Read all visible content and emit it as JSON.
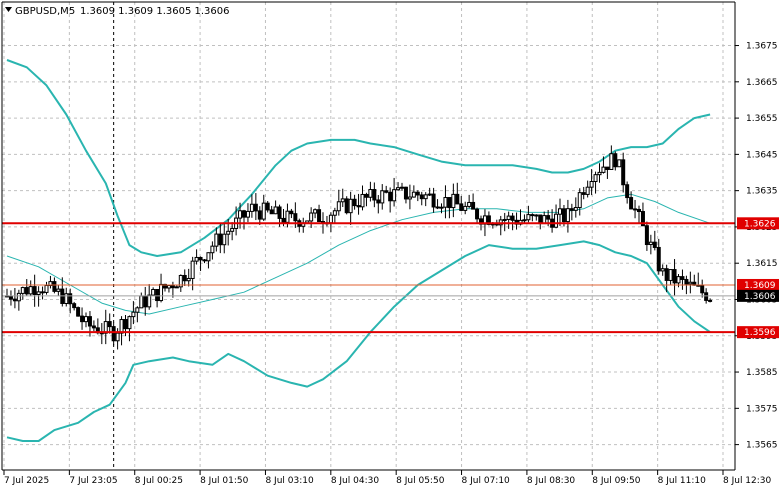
{
  "header": {
    "symbol_label": "GBPUSD,M5",
    "ohlc_label": "1.3609 1.3609 1.3605 1.3606"
  },
  "colors": {
    "background": "#ffffff",
    "grid": "#c0c0c0",
    "axis": "#000000",
    "candle": "#000000",
    "bollinger": "#2ab5b0",
    "level_line": "#e00000",
    "level_line_thin": "#e06030",
    "level_badge": "#e00000",
    "current_badge": "#000000"
  },
  "chart_data": {
    "type": "line",
    "title": "GBPUSD,M5",
    "xlabel": "",
    "ylabel": "",
    "grid": true,
    "ylim": [
      1.3558,
      1.3687
    ],
    "y_ticks": [
      "1.3675",
      "1.3665",
      "1.3655",
      "1.3645",
      "1.3635",
      "1.3625",
      "1.3615",
      "1.3605",
      "1.3595",
      "1.3585",
      "1.3575",
      "1.3565"
    ],
    "x_ticks": [
      "7 Jul 2025",
      "7 Jul 23:05",
      "8 Jul 00:25",
      "8 Jul 01:50",
      "8 Jul 03:10",
      "8 Jul 04:30",
      "8 Jul 05:50",
      "8 Jul 07:10",
      "8 Jul 08:30",
      "8 Jul 09:50",
      "8 Jul 11:10",
      "8 Jul 12:30"
    ],
    "x_range": [
      0,
      180
    ],
    "crosshair_x": 27,
    "levels": [
      {
        "label": "1.3626",
        "value": 1.3626,
        "style": "thick"
      },
      {
        "label": "1.3609",
        "value": 1.3609,
        "style": "thin"
      },
      {
        "label": "1.3596",
        "value": 1.3596,
        "style": "thick"
      }
    ],
    "current_price": {
      "label": "1.3606",
      "value": 1.3606
    },
    "ohlc_open": 1.3606,
    "ohlc_anchors": [
      [
        0,
        1.3606
      ],
      [
        8,
        1.3609
      ],
      [
        14,
        1.3606
      ],
      [
        20,
        1.3598
      ],
      [
        27,
        1.3596
      ],
      [
        34,
        1.3604
      ],
      [
        44,
        1.3611
      ],
      [
        52,
        1.362
      ],
      [
        62,
        1.363
      ],
      [
        72,
        1.3627
      ],
      [
        80,
        1.3628
      ],
      [
        88,
        1.3632
      ],
      [
        96,
        1.3634
      ],
      [
        104,
        1.3634
      ],
      [
        112,
        1.3632
      ],
      [
        120,
        1.3628
      ],
      [
        128,
        1.3627
      ],
      [
        136,
        1.3627
      ],
      [
        142,
        1.3628
      ],
      [
        148,
        1.364
      ],
      [
        154,
        1.3644
      ],
      [
        158,
        1.3632
      ],
      [
        162,
        1.3622
      ],
      [
        166,
        1.3612
      ],
      [
        172,
        1.3609
      ],
      [
        178,
        1.3606
      ]
    ],
    "series": [
      {
        "role": "upper-band",
        "x": [
          0,
          5,
          10,
          15,
          20,
          25,
          28,
          31,
          34,
          38,
          44,
          50,
          56,
          62,
          68,
          72,
          76,
          82,
          88,
          92,
          98,
          104,
          110,
          116,
          122,
          128,
          134,
          138,
          142,
          146,
          150,
          154,
          158,
          162,
          166,
          170,
          174,
          178
        ],
        "y": [
          1.3671,
          1.3669,
          1.3664,
          1.3656,
          1.3646,
          1.3637,
          1.3628,
          1.362,
          1.3618,
          1.3617,
          1.3618,
          1.3622,
          1.3627,
          1.3634,
          1.3642,
          1.3646,
          1.3648,
          1.3649,
          1.3649,
          1.3648,
          1.3647,
          1.3645,
          1.3643,
          1.3642,
          1.3642,
          1.3642,
          1.3641,
          1.364,
          1.364,
          1.3641,
          1.3643,
          1.3646,
          1.3647,
          1.3647,
          1.3648,
          1.3652,
          1.3655,
          1.3656
        ]
      },
      {
        "role": "middle-band",
        "x": [
          0,
          8,
          16,
          24,
          30,
          36,
          44,
          52,
          60,
          68,
          76,
          84,
          92,
          100,
          108,
          116,
          124,
          132,
          140,
          146,
          152,
          158,
          164,
          170,
          178
        ],
        "y": [
          1.3617,
          1.3614,
          1.3609,
          1.3604,
          1.3602,
          1.3601,
          1.3603,
          1.3605,
          1.3607,
          1.3611,
          1.3615,
          1.362,
          1.3624,
          1.3627,
          1.3629,
          1.363,
          1.363,
          1.3629,
          1.3629,
          1.363,
          1.3633,
          1.3634,
          1.3632,
          1.3629,
          1.3626
        ]
      },
      {
        "role": "lower-band",
        "x": [
          0,
          4,
          8,
          12,
          18,
          22,
          26,
          30,
          32,
          36,
          42,
          46,
          52,
          56,
          60,
          66,
          72,
          76,
          80,
          86,
          92,
          98,
          104,
          110,
          116,
          122,
          128,
          134,
          140,
          146,
          150,
          154,
          158,
          162,
          166,
          170,
          174,
          178
        ],
        "y": [
          1.3567,
          1.3566,
          1.3566,
          1.3569,
          1.3571,
          1.3574,
          1.3576,
          1.3582,
          1.3587,
          1.3588,
          1.3589,
          1.3588,
          1.3587,
          1.359,
          1.3588,
          1.3584,
          1.3582,
          1.3581,
          1.3583,
          1.3588,
          1.3596,
          1.3603,
          1.3609,
          1.3613,
          1.3617,
          1.362,
          1.3619,
          1.3619,
          1.362,
          1.3621,
          1.362,
          1.3618,
          1.3617,
          1.3615,
          1.3609,
          1.3603,
          1.3599,
          1.3596
        ]
      }
    ]
  }
}
